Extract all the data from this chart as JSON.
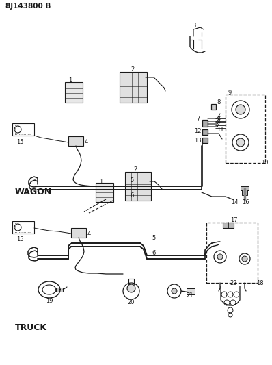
{
  "title": "8J143800 B",
  "bg_color": "#ffffff",
  "line_color": "#1a1a1a",
  "wagon_label": "WAGON",
  "truck_label": "TRUCK",
  "fig_width": 3.98,
  "fig_height": 5.33
}
